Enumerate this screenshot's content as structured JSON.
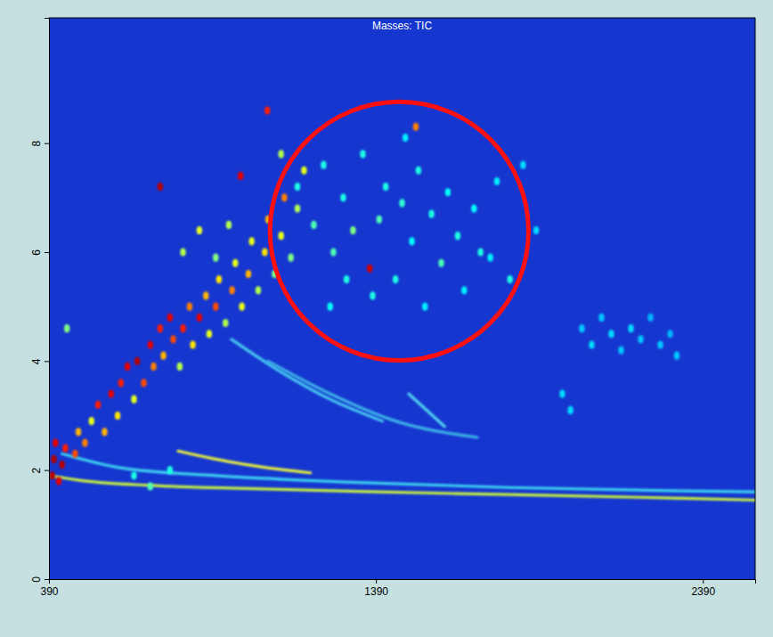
{
  "chart_data": {
    "type": "scatter",
    "title": "Masses: TIC",
    "xlim": [
      390,
      2550
    ],
    "xticks": [
      390,
      1390,
      2390
    ],
    "ylim": [
      0,
      10.3
    ],
    "yticks": [
      0,
      2,
      4,
      6,
      8
    ],
    "intensity_range": [
      0,
      100
    ],
    "series": [
      {
        "type": "scatter",
        "x": [
          400,
          405,
          410,
          420,
          430,
          440,
          470,
          480,
          500,
          520,
          540,
          560,
          580,
          600,
          610,
          630,
          650,
          660,
          680,
          700,
          710,
          730,
          740,
          760,
          770,
          790,
          800,
          820,
          830,
          850,
          870,
          880,
          900,
          910,
          930,
          950,
          960,
          980,
          1000,
          1010,
          1030,
          1050,
          1060,
          1080,
          1100,
          1110,
          1130,
          1150,
          1170,
          1058,
          1100,
          730,
          976,
          1371,
          1512,
          800,
          850,
          900,
          940,
          650,
          700,
          760,
          1150,
          1200,
          1230,
          1260,
          1290,
          1320,
          1350,
          1380,
          1400,
          1420,
          1450,
          1470,
          1500,
          1520,
          1540,
          1560,
          1590,
          1610,
          1640,
          1660,
          1690,
          1710,
          1740,
          1760,
          1800,
          1840,
          1880,
          1300,
          1250,
          1480,
          2020,
          2050,
          2080,
          2110,
          2140,
          2170,
          2200,
          2230,
          2260,
          2290,
          2310,
          1960,
          1985,
          445
        ],
        "values": [
          1.9,
          2.2,
          2.5,
          1.8,
          2.1,
          2.4,
          2.3,
          2.7,
          2.5,
          2.9,
          3.2,
          2.7,
          3.4,
          3.0,
          3.6,
          3.9,
          3.3,
          4.0,
          3.6,
          4.3,
          3.9,
          4.6,
          4.1,
          4.8,
          4.4,
          3.9,
          4.6,
          5.0,
          4.3,
          4.8,
          5.2,
          4.5,
          5.0,
          5.5,
          4.7,
          5.3,
          5.8,
          5.0,
          5.6,
          6.2,
          5.3,
          6.0,
          6.6,
          5.6,
          6.3,
          7.0,
          5.9,
          6.8,
          7.5,
          8.6,
          7.8,
          7.2,
          7.4,
          5.7,
          8.3,
          6.0,
          6.4,
          5.9,
          6.5,
          1.9,
          1.7,
          2.0,
          7.2,
          6.5,
          7.6,
          6.0,
          7.0,
          6.4,
          7.8,
          5.2,
          6.6,
          7.2,
          5.5,
          6.9,
          6.2,
          7.5,
          5.0,
          6.7,
          5.8,
          7.1,
          6.3,
          5.3,
          6.8,
          6.0,
          5.9,
          7.3,
          5.5,
          7.6,
          6.4,
          5.5,
          5.0,
          8.1,
          4.6,
          4.3,
          4.8,
          4.5,
          4.2,
          4.6,
          4.4,
          4.8,
          4.3,
          4.5,
          4.1,
          3.4,
          3.1,
          4.6
        ],
        "intensity": [
          95,
          95,
          90,
          90,
          95,
          85,
          80,
          70,
          75,
          60,
          85,
          70,
          90,
          65,
          85,
          90,
          60,
          95,
          80,
          90,
          75,
          85,
          70,
          90,
          80,
          55,
          85,
          75,
          65,
          90,
          70,
          60,
          80,
          65,
          55,
          75,
          60,
          60,
          70,
          60,
          55,
          65,
          70,
          50,
          60,
          75,
          50,
          55,
          60,
          85,
          55,
          95,
          90,
          92,
          75,
          55,
          60,
          50,
          55,
          40,
          45,
          40,
          40,
          45,
          40,
          45,
          40,
          50,
          40,
          40,
          45,
          40,
          40,
          42,
          38,
          40,
          36,
          40,
          45,
          38,
          40,
          36,
          38,
          40,
          36,
          36,
          40,
          34,
          34,
          40,
          38,
          36,
          32,
          34,
          32,
          34,
          32,
          34,
          32,
          30,
          32,
          30,
          32,
          34,
          34,
          50
        ]
      },
      {
        "type": "line",
        "color": "#c8f03c",
        "x": [
          390,
          500,
          700,
          1000,
          1400,
          1800,
          2200,
          2550
        ],
        "values": [
          1.9,
          1.8,
          1.72,
          1.66,
          1.6,
          1.55,
          1.5,
          1.45
        ]
      },
      {
        "type": "line",
        "color": "#3cd2f0",
        "x": [
          430,
          600,
          900,
          1300,
          1800,
          2300,
          2550
        ],
        "values": [
          2.3,
          2.05,
          1.9,
          1.78,
          1.68,
          1.62,
          1.6
        ]
      },
      {
        "type": "line",
        "color": "#e6f03c",
        "x": [
          785,
          900,
          1050,
          1190
        ],
        "values": [
          2.35,
          2.2,
          2.05,
          1.95
        ]
      },
      {
        "type": "line",
        "color": "#46c8f0",
        "x": [
          948,
          1100,
          1250,
          1410
        ],
        "values": [
          4.4,
          3.8,
          3.3,
          2.9
        ]
      },
      {
        "type": "line",
        "color": "#3cb4e6",
        "x": [
          1060,
          1250,
          1450,
          1700
        ],
        "values": [
          4.0,
          3.4,
          2.9,
          2.6
        ]
      },
      {
        "type": "line",
        "color": "#50d2f0",
        "x": [
          1490,
          1600
        ],
        "values": [
          3.4,
          2.8
        ]
      }
    ]
  }
}
